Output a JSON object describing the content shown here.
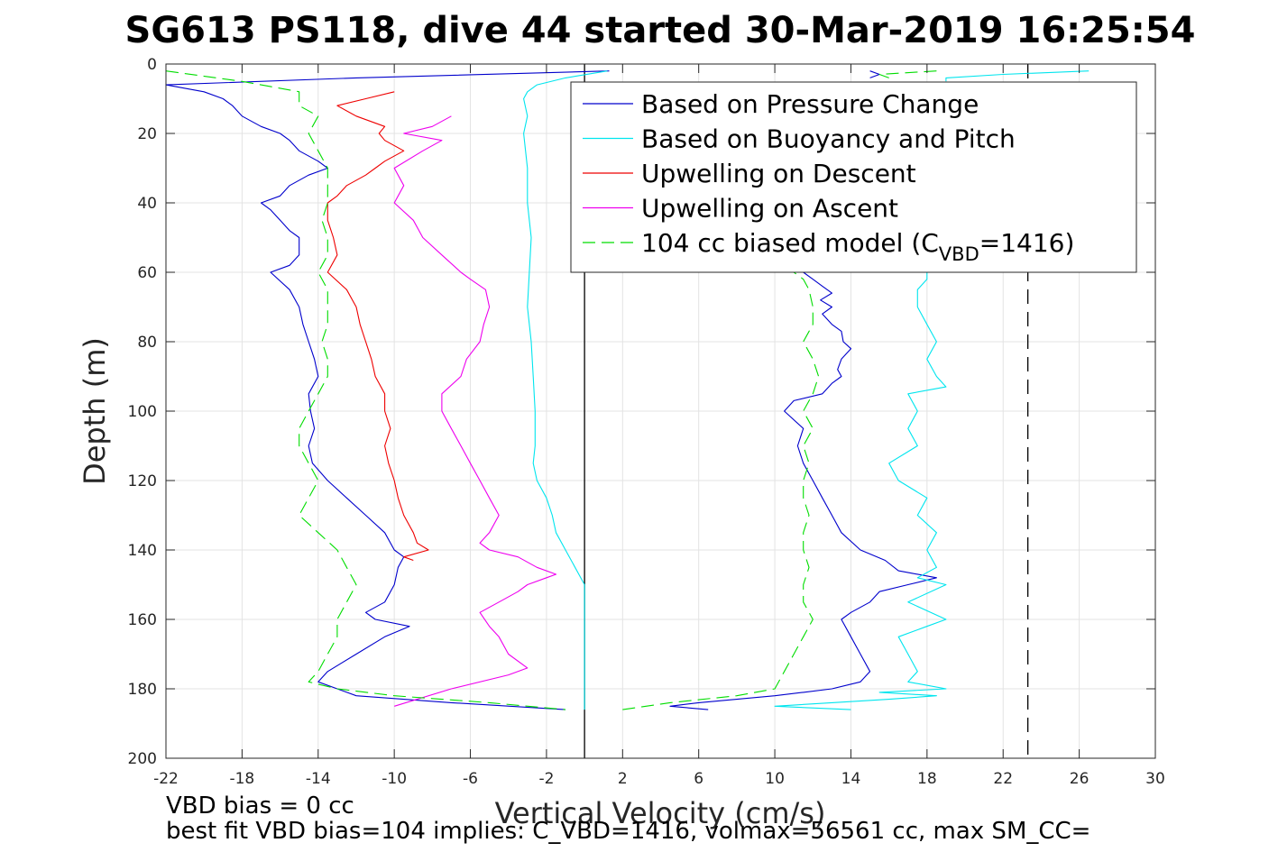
{
  "chart_data": {
    "type": "line",
    "title": "SG613 PS118, dive 44 started 30-Mar-2019 16:25:54",
    "xlabel": "Vertical Velocity (cm/s)",
    "ylabel": "Depth (m)",
    "xlim": [
      -22,
      30
    ],
    "ylim": [
      0,
      200
    ],
    "y_reversed": true,
    "grid": true,
    "legend_position": "top-right",
    "x_ticks": [
      "-22",
      "-18",
      "-14",
      "-10",
      "-6",
      "-2",
      "2",
      "6",
      "10",
      "14",
      "18",
      "22",
      "26",
      "30"
    ],
    "y_ticks": [
      "0",
      "20",
      "40",
      "60",
      "80",
      "100",
      "120",
      "140",
      "160",
      "180",
      "200"
    ],
    "reference_lines": [
      {
        "x": 0,
        "style": "solid",
        "color": "#000000"
      },
      {
        "x": 23.3,
        "style": "dashed",
        "color": "#000000"
      }
    ],
    "series": [
      {
        "name": "Based on Pressure Change",
        "color": "#0000cc",
        "style": "solid",
        "descent": {
          "depth": [
            2,
            4,
            6,
            8,
            10,
            12,
            15,
            18,
            20,
            22,
            25,
            28,
            30,
            32,
            35,
            38,
            40,
            42,
            45,
            48,
            50,
            55,
            58,
            60,
            65,
            70,
            75,
            80,
            85,
            90,
            95,
            100,
            105,
            110,
            115,
            120,
            125,
            130,
            135,
            140,
            142,
            145,
            150,
            155,
            158,
            160,
            162,
            165,
            170,
            175,
            178,
            180,
            182,
            184,
            186
          ],
          "values": [
            1.3,
            -12,
            -22,
            -20,
            -19,
            -18.5,
            -18,
            -17,
            -16,
            -15.5,
            -15,
            -14,
            -13.5,
            -14.5,
            -15.5,
            -16,
            -17,
            -16.5,
            -16,
            -15.5,
            -15,
            -15,
            -15.5,
            -16.5,
            -15.5,
            -15,
            -14.8,
            -14.5,
            -14.2,
            -14,
            -14.5,
            -14.4,
            -14.2,
            -14.5,
            -14.3,
            -13.5,
            -12.5,
            -11.5,
            -10.5,
            -10,
            -9.5,
            -9.8,
            -10,
            -10.5,
            -11.5,
            -11,
            -9.2,
            -10.5,
            -12,
            -13.5,
            -14,
            -13,
            -12,
            -7,
            -1
          ]
        },
        "ascent": {
          "depth": [
            186,
            185,
            184,
            183,
            182,
            181,
            180,
            178,
            175,
            170,
            165,
            160,
            158,
            155,
            152,
            150,
            148,
            146,
            143,
            140,
            135,
            130,
            125,
            120,
            115,
            110,
            105,
            100,
            97,
            95,
            92,
            90,
            88,
            85,
            82,
            80,
            77,
            75,
            72,
            70,
            68,
            66,
            64,
            62,
            60
          ],
          "values": [
            6.5,
            4.5,
            6,
            8,
            10,
            11.5,
            13,
            14.5,
            15,
            14.5,
            14,
            13.5,
            14,
            15,
            15.5,
            17,
            18.5,
            16.5,
            15.8,
            14.5,
            13.5,
            13,
            12.5,
            12,
            11.5,
            11.2,
            11.5,
            10.5,
            11,
            12.5,
            13,
            13.5,
            13.3,
            13.5,
            14,
            13.6,
            13.5,
            13,
            12.5,
            13,
            12.4,
            13,
            12.5,
            12,
            11.5
          ]
        }
      },
      {
        "name": "Based on Buoyancy and Pitch",
        "color": "#00e5ee",
        "style": "solid",
        "descent": {
          "depth": [
            2,
            4,
            6,
            8,
            10,
            15,
            20,
            25,
            30,
            40,
            50,
            60,
            70,
            80,
            90,
            100,
            110,
            115,
            120,
            125,
            130,
            135,
            140,
            145,
            150,
            160,
            170,
            180,
            186
          ],
          "values": [
            1.2,
            -1,
            -2.5,
            -3,
            -3.2,
            -3,
            -3.2,
            -3.1,
            -3,
            -3,
            -2.8,
            -2.9,
            -3,
            -2.8,
            -2.7,
            -2.6,
            -2.6,
            -2.7,
            -2.5,
            -2,
            -1.7,
            -1.5,
            -1,
            -0.5,
            0,
            0,
            0,
            0,
            0
          ]
        },
        "ascent": {
          "depth": [
            186,
            185,
            184,
            183,
            182,
            181,
            180,
            178,
            175,
            170,
            165,
            162,
            160,
            155,
            150,
            148,
            145,
            140,
            135,
            130,
            125,
            120,
            115,
            110,
            105,
            100,
            95,
            93,
            90,
            85,
            80,
            75,
            70,
            65,
            62,
            60
          ],
          "values": [
            14,
            10,
            13,
            16,
            18.5,
            15.5,
            19,
            17,
            17.5,
            17,
            16.5,
            18,
            19,
            17,
            19,
            17.5,
            18.5,
            18,
            18.5,
            17.5,
            18,
            16.5,
            16,
            17.5,
            17,
            17.5,
            17,
            19,
            18.5,
            18,
            18.5,
            18,
            17.5,
            17.5,
            18,
            18
          ]
        }
      },
      {
        "name": "Upwelling on Descent",
        "color": "#ee0000",
        "style": "solid",
        "descent": {
          "depth": [
            8,
            10,
            12,
            15,
            18,
            20,
            22,
            25,
            28,
            30,
            32,
            35,
            38,
            40,
            45,
            50,
            55,
            60,
            65,
            70,
            75,
            80,
            85,
            90,
            95,
            100,
            105,
            110,
            115,
            120,
            125,
            130,
            135,
            138,
            140,
            142,
            143
          ],
          "values": [
            -10,
            -11.5,
            -13,
            -12,
            -10.5,
            -10.8,
            -10.5,
            -9.5,
            -10.5,
            -11,
            -11.5,
            -12.5,
            -13,
            -13.5,
            -13.5,
            -13.2,
            -13,
            -13.5,
            -12.5,
            -12,
            -11.8,
            -11.5,
            -11.2,
            -11,
            -10.5,
            -10.5,
            -10.2,
            -10.5,
            -10.3,
            -10,
            -9.8,
            -9.5,
            -9,
            -8.8,
            -8.2,
            -9.5,
            -9
          ]
        }
      },
      {
        "name": "Upwelling on Ascent",
        "color": "#ee00ee",
        "style": "solid",
        "ascent": {
          "depth": [
            185,
            180,
            176,
            174,
            170,
            165,
            162,
            158,
            155,
            152,
            150,
            148,
            147,
            145,
            142,
            140,
            138,
            135,
            130,
            125,
            120,
            115,
            110,
            105,
            100,
            95,
            90,
            85,
            80,
            75,
            70,
            65,
            62,
            60,
            55,
            50,
            45,
            40,
            35,
            30,
            25,
            22,
            20,
            18,
            15
          ],
          "values": [
            -10,
            -7,
            -4,
            -3,
            -4,
            -4.5,
            -5,
            -5.5,
            -4.5,
            -3.5,
            -3,
            -2,
            -1.5,
            -2.5,
            -3.5,
            -5,
            -5.5,
            -5,
            -4.5,
            -5,
            -5.5,
            -6,
            -6.5,
            -7,
            -7.5,
            -7.5,
            -6.5,
            -6.2,
            -5.5,
            -5.3,
            -5,
            -5.2,
            -6,
            -6.5,
            -7.5,
            -8.5,
            -9,
            -10,
            -9.5,
            -10,
            -8.5,
            -7.5,
            -9.5,
            -8,
            -7
          ]
        }
      },
      {
        "name": "104 cc biased model (C",
        "name_subscript": "VBD",
        "name_suffix": "=1416)",
        "color": "#00dd00",
        "style": "dashed",
        "descent": {
          "depth": [
            2,
            5,
            8,
            12,
            15,
            20,
            25,
            30,
            35,
            40,
            45,
            50,
            55,
            60,
            65,
            70,
            75,
            80,
            85,
            90,
            95,
            100,
            105,
            110,
            115,
            120,
            125,
            130,
            135,
            140,
            145,
            150,
            155,
            160,
            165,
            170,
            175,
            178,
            180,
            182,
            184,
            186
          ],
          "values": [
            -22,
            -18,
            -15,
            -15,
            -14,
            -14.5,
            -14,
            -13.5,
            -13.5,
            -13.5,
            -13.8,
            -13.5,
            -13.5,
            -14,
            -13.5,
            -13.5,
            -13.5,
            -13.8,
            -13.5,
            -13.5,
            -14,
            -14.5,
            -15,
            -15,
            -14.5,
            -14,
            -14.5,
            -15,
            -14,
            -13,
            -12.5,
            -12,
            -12.5,
            -13,
            -13,
            -13.5,
            -14,
            -14.5,
            -13,
            -10,
            -5,
            -1
          ]
        },
        "ascent": {
          "depth": [
            186,
            184,
            182,
            180,
            175,
            170,
            165,
            160,
            155,
            150,
            145,
            140,
            135,
            130,
            125,
            120,
            115,
            110,
            105,
            100,
            95,
            90,
            85,
            80,
            75,
            70,
            65,
            62,
            60
          ],
          "values": [
            2,
            4.5,
            8,
            10,
            10.5,
            11,
            11.5,
            12,
            11.5,
            11.5,
            11.8,
            11.5,
            11.5,
            11.8,
            11.5,
            11.5,
            11.8,
            11.5,
            12,
            11.5,
            12,
            12.3,
            12,
            11.5,
            12,
            12,
            11.8,
            11.5,
            11
          ]
        }
      }
    ],
    "top_ascent_fragments": [
      {
        "series": "Based on Pressure Change",
        "depth": [
          2,
          3,
          4
        ],
        "values": [
          15,
          15.5,
          15
        ]
      },
      {
        "series": "Based on Buoyancy and Pitch",
        "depth": [
          2,
          3,
          4,
          5
        ],
        "values": [
          26.5,
          22,
          19,
          19
        ]
      },
      {
        "series": "104 cc biased model",
        "depth": [
          2,
          3,
          4
        ],
        "values": [
          18.5,
          15.5,
          16
        ]
      }
    ]
  },
  "footer": {
    "line1": "VBD bias = 0 cc",
    "line2": "best fit VBD bias=104 implies: C_VBD=1416, volmax=56561 cc, max SM_CC="
  }
}
